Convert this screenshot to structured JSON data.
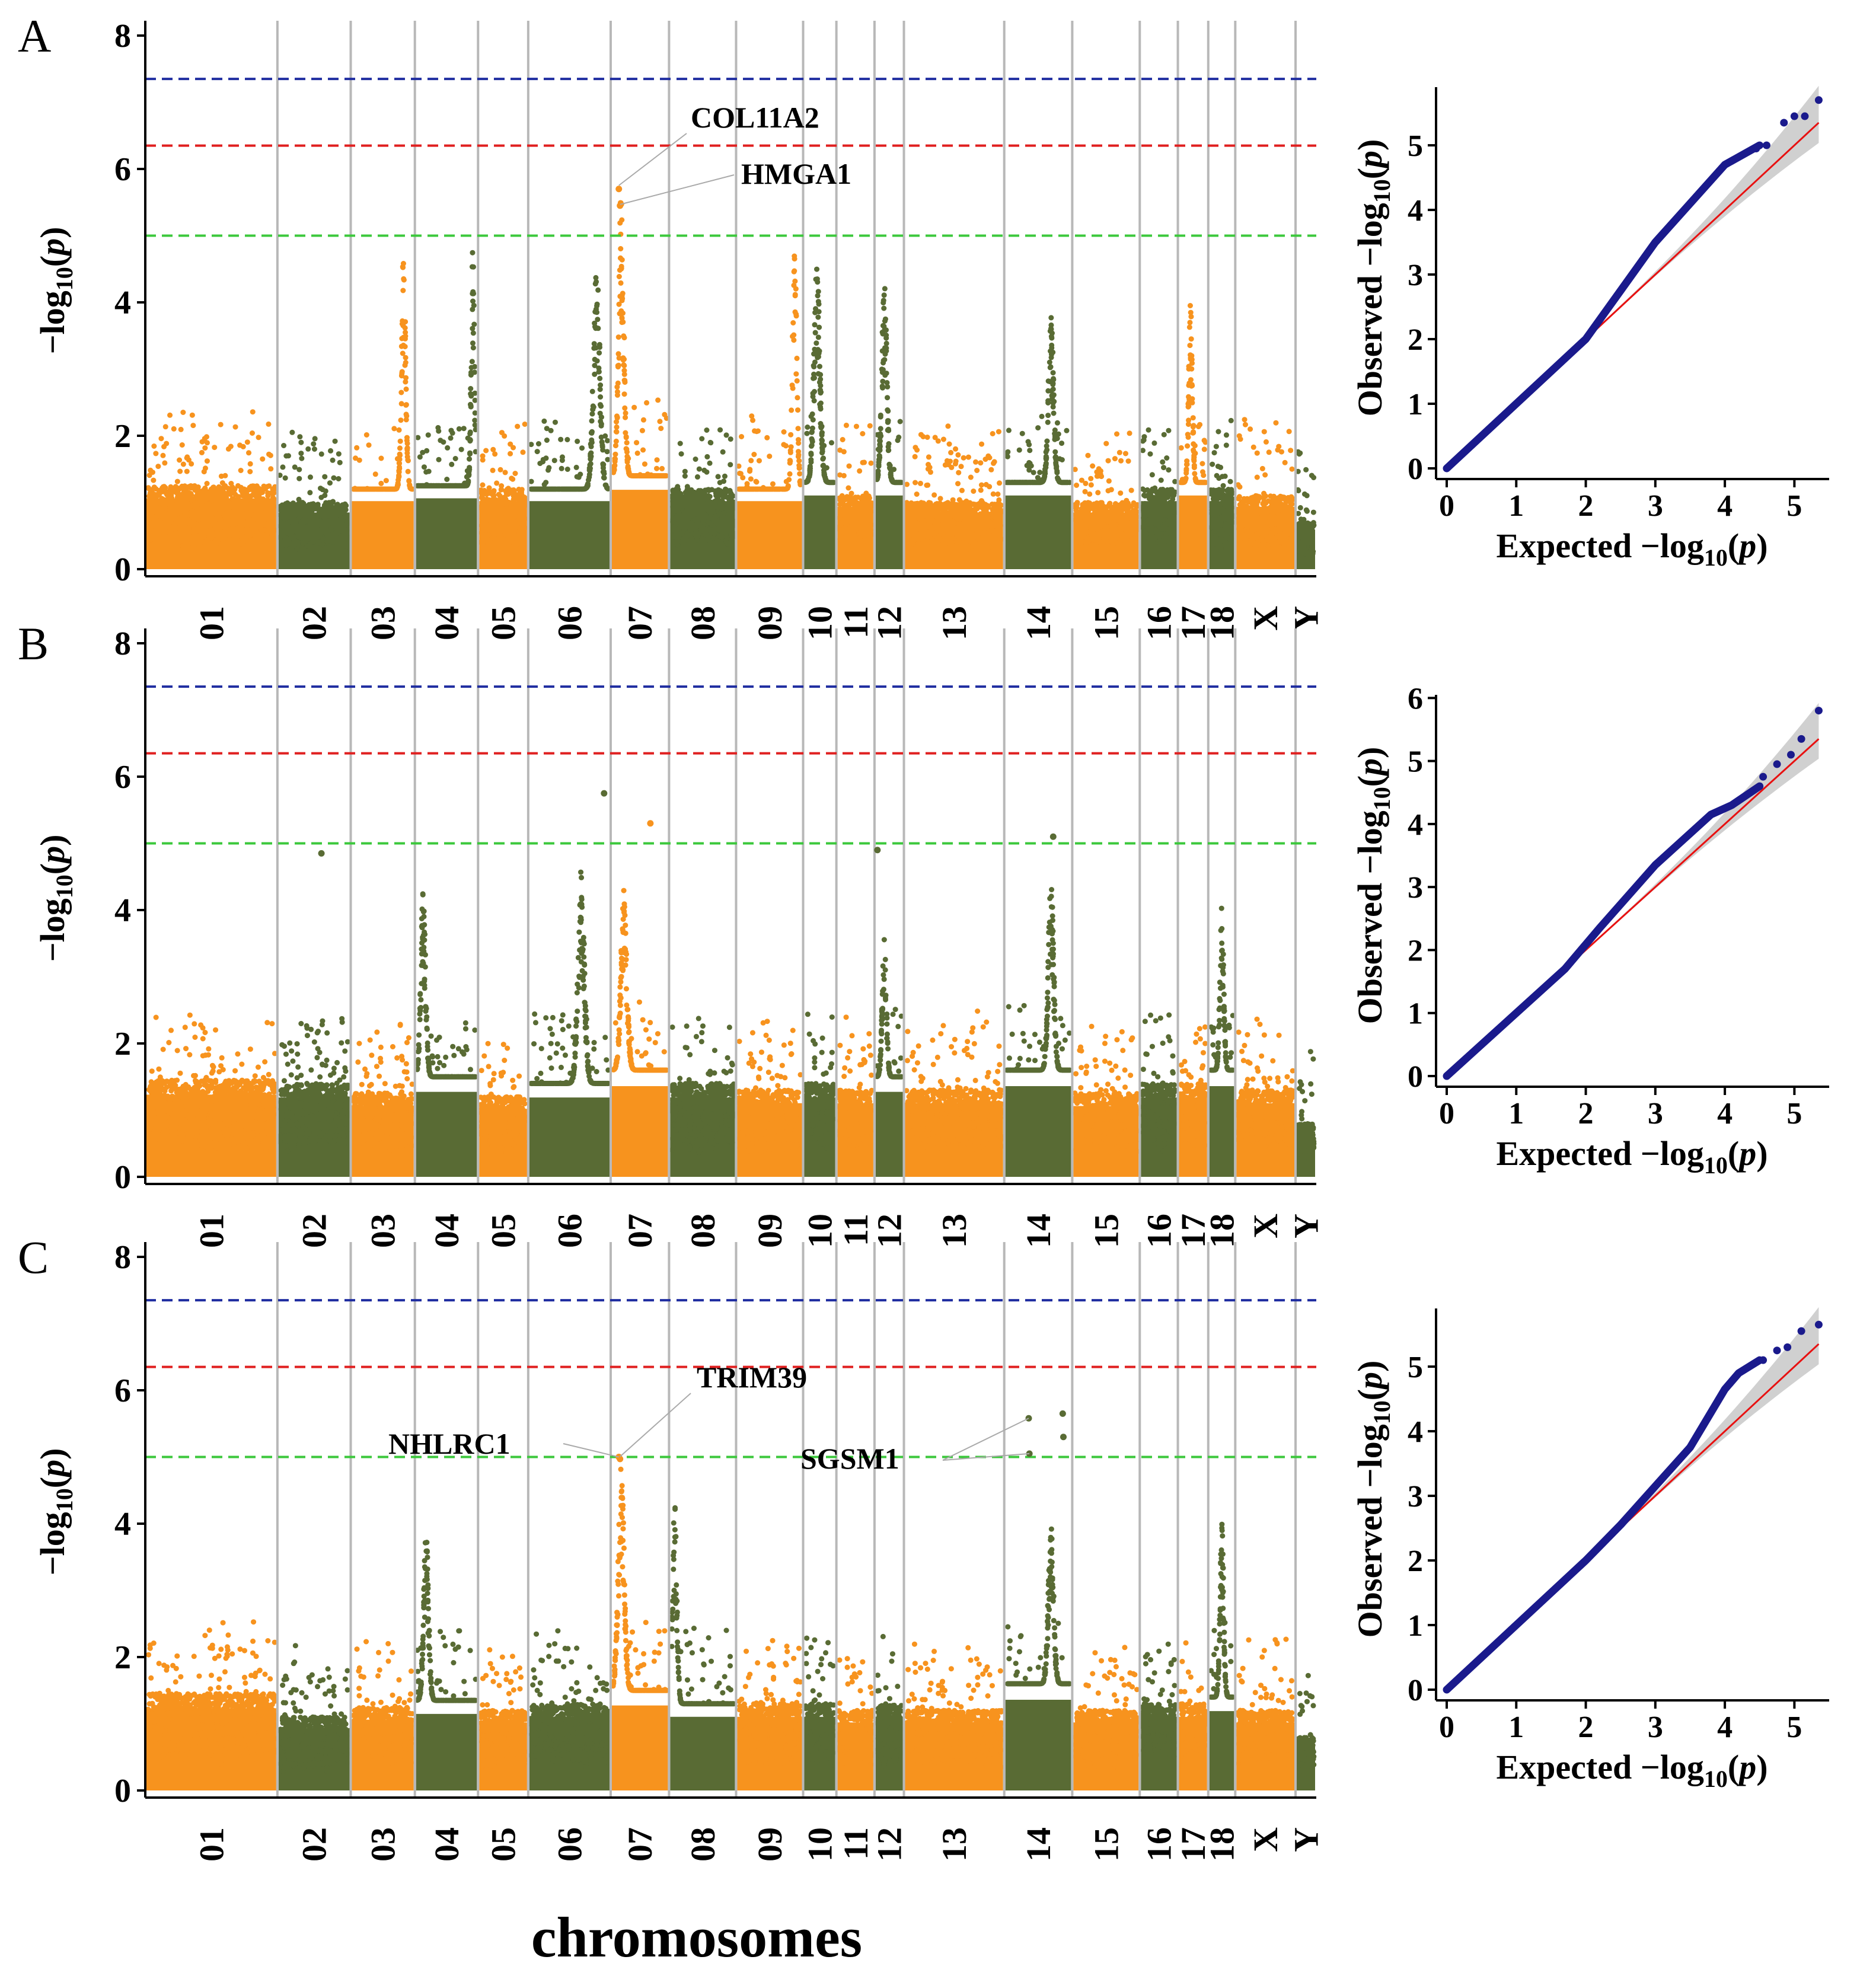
{
  "figure": {
    "x_title": "chromosomes",
    "colors": {
      "orange": "#F7931E",
      "green": "#596B34",
      "blue_line": "#1F2DA0",
      "red_line": "#E02020",
      "green_line": "#3CC83C",
      "qq_points": "#1A1A8C",
      "qq_line": "#E81010",
      "ci_band": "#C8C8C8",
      "divider": "#B8B8B8"
    }
  },
  "chart_data": [
    {
      "panel": "A",
      "type": "scatter",
      "subtype": "manhattan",
      "ylabel": "-log10(p)",
      "ylim": [
        0,
        8
      ],
      "yticks": [
        0,
        2,
        4,
        6,
        8
      ],
      "thresholds": [
        {
          "name": "blue",
          "value": 7.35
        },
        {
          "name": "red",
          "value": 6.35
        },
        {
          "name": "green",
          "value": 5.0
        }
      ],
      "chromosomes": [
        {
          "label": "01",
          "length": 274,
          "base": 1.25,
          "color": "orange"
        },
        {
          "label": "02",
          "length": 152,
          "base": 1.0,
          "color": "green"
        },
        {
          "label": "03",
          "length": 133,
          "base": 1.2,
          "color": "orange"
        },
        {
          "label": "04",
          "length": 131,
          "base": 1.25,
          "color": "green"
        },
        {
          "label": "05",
          "length": 104,
          "base": 1.2,
          "color": "orange"
        },
        {
          "label": "06",
          "length": 171,
          "base": 1.2,
          "color": "green"
        },
        {
          "label": "07",
          "length": 121,
          "base": 1.4,
          "color": "orange"
        },
        {
          "label": "08",
          "length": 139,
          "base": 1.2,
          "color": "green"
        },
        {
          "label": "09",
          "length": 139,
          "base": 1.2,
          "color": "orange"
        },
        {
          "label": "10",
          "length": 69,
          "base": 1.3,
          "color": "green"
        },
        {
          "label": "11",
          "length": 79,
          "base": 1.1,
          "color": "orange"
        },
        {
          "label": "12",
          "length": 61,
          "base": 1.3,
          "color": "green"
        },
        {
          "label": "13",
          "length": 208,
          "base": 1.0,
          "color": "orange"
        },
        {
          "label": "14",
          "length": 141,
          "base": 1.3,
          "color": "green"
        },
        {
          "label": "15",
          "length": 140,
          "base": 1.0,
          "color": "orange"
        },
        {
          "label": "16",
          "length": 79,
          "base": 1.2,
          "color": "green"
        },
        {
          "label": "17",
          "length": 63,
          "base": 1.3,
          "color": "orange"
        },
        {
          "label": "18",
          "length": 56,
          "base": 1.2,
          "color": "green"
        },
        {
          "label": "X",
          "length": 125,
          "base": 1.1,
          "color": "orange"
        },
        {
          "label": "Y",
          "length": 43,
          "base": 0.7,
          "color": "green"
        }
      ],
      "peaks": [
        {
          "chr": "07",
          "pos": 0.15,
          "height": 5.7,
          "width": 0.07
        },
        {
          "chr": "14",
          "pos": 0.7,
          "height": 3.8,
          "width": 0.06
        },
        {
          "chr": "03",
          "pos": 0.85,
          "height": 4.9,
          "width": 0.05
        },
        {
          "chr": "10",
          "pos": 0.4,
          "height": 4.6,
          "width": 0.15
        },
        {
          "chr": "12",
          "pos": 0.3,
          "height": 4.3,
          "width": 0.15
        },
        {
          "chr": "17",
          "pos": 0.4,
          "height": 4.05,
          "width": 0.1
        },
        {
          "chr": "09",
          "pos": 0.9,
          "height": 4.9,
          "width": 0.05
        },
        {
          "chr": "06",
          "pos": 0.85,
          "height": 4.5,
          "width": 0.06
        },
        {
          "chr": "04",
          "pos": 0.95,
          "height": 4.8,
          "width": 0.04
        }
      ],
      "highlight_points": [
        {
          "chr": "07",
          "pos": 0.14,
          "value": 5.7
        },
        {
          "chr": "07",
          "pos": 0.16,
          "value": 5.45
        }
      ],
      "annotations": [
        {
          "text": "COL11A2",
          "target": 0
        },
        {
          "text": "HMGA1",
          "target": 1
        }
      ],
      "qq": {
        "xlabel": "Expected −log10(p)",
        "ylabel": "Observed −log10(p)",
        "xlim": [
          0,
          5.5
        ],
        "ylim": [
          0,
          5.9
        ],
        "xticks": [
          0,
          1,
          2,
          3,
          4,
          5
        ],
        "yticks": [
          0,
          1,
          2,
          3,
          4,
          5
        ],
        "max_expected": 5.35,
        "curve": [
          [
            0,
            0
          ],
          [
            2.0,
            2.0
          ],
          [
            2.5,
            2.75
          ],
          [
            3.0,
            3.5
          ],
          [
            3.5,
            4.1
          ],
          [
            4.0,
            4.7
          ],
          [
            4.5,
            5.0
          ],
          [
            5.35,
            5.7
          ]
        ],
        "tail": [
          [
            4.45,
            4.95
          ],
          [
            4.6,
            5.0
          ],
          [
            4.85,
            5.35
          ],
          [
            5.0,
            5.45
          ],
          [
            5.15,
            5.45
          ],
          [
            5.35,
            5.7
          ]
        ]
      }
    },
    {
      "panel": "B",
      "type": "scatter",
      "subtype": "manhattan",
      "ylabel": "-log10(p)",
      "ylim": [
        0,
        8
      ],
      "yticks": [
        0,
        2,
        4,
        6,
        8
      ],
      "thresholds": [
        {
          "name": "blue",
          "value": 7.35
        },
        {
          "name": "red",
          "value": 6.35
        },
        {
          "name": "green",
          "value": 5.0
        }
      ],
      "chromosomes": [
        {
          "label": "01",
          "length": 274,
          "base": 1.45,
          "color": "orange"
        },
        {
          "label": "02",
          "length": 152,
          "base": 1.4,
          "color": "green"
        },
        {
          "label": "03",
          "length": 133,
          "base": 1.25,
          "color": "orange"
        },
        {
          "label": "04",
          "length": 131,
          "base": 1.5,
          "color": "green"
        },
        {
          "label": "05",
          "length": 104,
          "base": 1.2,
          "color": "orange"
        },
        {
          "label": "06",
          "length": 171,
          "base": 1.4,
          "color": "green"
        },
        {
          "label": "07",
          "length": 121,
          "base": 1.6,
          "color": "orange"
        },
        {
          "label": "08",
          "length": 139,
          "base": 1.4,
          "color": "green"
        },
        {
          "label": "09",
          "length": 139,
          "base": 1.3,
          "color": "orange"
        },
        {
          "label": "10",
          "length": 69,
          "base": 1.4,
          "color": "green"
        },
        {
          "label": "11",
          "length": 79,
          "base": 1.3,
          "color": "orange"
        },
        {
          "label": "12",
          "length": 61,
          "base": 1.5,
          "color": "green"
        },
        {
          "label": "13",
          "length": 208,
          "base": 1.3,
          "color": "orange"
        },
        {
          "label": "14",
          "length": 141,
          "base": 1.6,
          "color": "green"
        },
        {
          "label": "15",
          "length": 140,
          "base": 1.25,
          "color": "orange"
        },
        {
          "label": "16",
          "length": 79,
          "base": 1.4,
          "color": "green"
        },
        {
          "label": "17",
          "length": 63,
          "base": 1.4,
          "color": "orange"
        },
        {
          "label": "18",
          "length": 56,
          "base": 1.6,
          "color": "green"
        },
        {
          "label": "X",
          "length": 125,
          "base": 1.3,
          "color": "orange"
        },
        {
          "label": "Y",
          "length": 43,
          "base": 0.8,
          "color": "green"
        }
      ],
      "peaks": [
        {
          "chr": "07",
          "pos": 0.2,
          "height": 4.3,
          "width": 0.08
        },
        {
          "chr": "14",
          "pos": 0.7,
          "height": 4.5,
          "width": 0.06
        },
        {
          "chr": "04",
          "pos": 0.1,
          "height": 4.3,
          "width": 0.06
        },
        {
          "chr": "06",
          "pos": 0.65,
          "height": 4.6,
          "width": 0.06
        },
        {
          "chr": "12",
          "pos": 0.3,
          "height": 3.6,
          "width": 0.12
        },
        {
          "chr": "18",
          "pos": 0.5,
          "height": 4.2,
          "width": 0.12
        }
      ],
      "highlight_points": [
        {
          "chr": "06",
          "pos": 0.92,
          "value": 5.75
        },
        {
          "chr": "07",
          "pos": 0.68,
          "value": 5.3
        },
        {
          "chr": "14",
          "pos": 0.72,
          "value": 5.1
        },
        {
          "chr": "12",
          "pos": 0.1,
          "value": 4.9
        },
        {
          "chr": "02",
          "pos": 0.6,
          "value": 4.85
        }
      ],
      "annotations": [],
      "qq": {
        "xlabel": "Expected −log10(p)",
        "ylabel": "Observed −log10(p)",
        "xlim": [
          0,
          5.5
        ],
        "ylim": [
          0,
          6.05
        ],
        "xticks": [
          0,
          1,
          2,
          3,
          4,
          5
        ],
        "yticks": [
          0,
          1,
          2,
          3,
          4,
          5,
          6
        ],
        "max_expected": 5.35,
        "curve": [
          [
            0,
            0
          ],
          [
            1.7,
            1.7
          ],
          [
            2.2,
            2.35
          ],
          [
            3.0,
            3.35
          ],
          [
            3.6,
            3.95
          ],
          [
            3.8,
            4.15
          ],
          [
            4.1,
            4.3
          ],
          [
            4.5,
            4.6
          ],
          [
            5.35,
            5.8
          ]
        ],
        "tail": [
          [
            4.55,
            4.75
          ],
          [
            4.75,
            4.95
          ],
          [
            4.95,
            5.1
          ],
          [
            5.1,
            5.35
          ],
          [
            5.35,
            5.8
          ]
        ]
      }
    },
    {
      "panel": "C",
      "type": "scatter",
      "subtype": "manhattan",
      "ylabel": "-log10(p)",
      "ylim": [
        0,
        8
      ],
      "yticks": [
        0,
        2,
        4,
        6,
        8
      ],
      "thresholds": [
        {
          "name": "blue",
          "value": 7.35
        },
        {
          "name": "red",
          "value": 6.35
        },
        {
          "name": "green",
          "value": 5.0
        }
      ],
      "chromosomes": [
        {
          "label": "01",
          "length": 274,
          "base": 1.45,
          "color": "orange"
        },
        {
          "label": "02",
          "length": 152,
          "base": 1.1,
          "color": "green"
        },
        {
          "label": "03",
          "length": 133,
          "base": 1.25,
          "color": "orange"
        },
        {
          "label": "04",
          "length": 131,
          "base": 1.35,
          "color": "green"
        },
        {
          "label": "05",
          "length": 104,
          "base": 1.2,
          "color": "orange"
        },
        {
          "label": "06",
          "length": 171,
          "base": 1.3,
          "color": "green"
        },
        {
          "label": "07",
          "length": 121,
          "base": 1.5,
          "color": "orange"
        },
        {
          "label": "08",
          "length": 139,
          "base": 1.3,
          "color": "green"
        },
        {
          "label": "09",
          "length": 139,
          "base": 1.3,
          "color": "orange"
        },
        {
          "label": "10",
          "length": 69,
          "base": 1.3,
          "color": "green"
        },
        {
          "label": "11",
          "length": 79,
          "base": 1.2,
          "color": "orange"
        },
        {
          "label": "12",
          "length": 61,
          "base": 1.3,
          "color": "green"
        },
        {
          "label": "13",
          "length": 208,
          "base": 1.2,
          "color": "orange"
        },
        {
          "label": "14",
          "length": 141,
          "base": 1.6,
          "color": "green"
        },
        {
          "label": "15",
          "length": 140,
          "base": 1.2,
          "color": "orange"
        },
        {
          "label": "16",
          "length": 79,
          "base": 1.3,
          "color": "green"
        },
        {
          "label": "17",
          "length": 63,
          "base": 1.3,
          "color": "orange"
        },
        {
          "label": "18",
          "length": 56,
          "base": 1.4,
          "color": "green"
        },
        {
          "label": "X",
          "length": 125,
          "base": 1.2,
          "color": "orange"
        },
        {
          "label": "Y",
          "length": 43,
          "base": 0.8,
          "color": "green"
        }
      ],
      "peaks": [
        {
          "chr": "07",
          "pos": 0.15,
          "height": 4.9,
          "width": 0.08
        },
        {
          "chr": "14",
          "pos": 0.7,
          "height": 4.0,
          "width": 0.06
        },
        {
          "chr": "04",
          "pos": 0.15,
          "height": 3.9,
          "width": 0.06
        },
        {
          "chr": "18",
          "pos": 0.5,
          "height": 4.0,
          "width": 0.12
        },
        {
          "chr": "08",
          "pos": 0.05,
          "height": 4.35,
          "width": 0.05
        }
      ],
      "highlight_points": [
        {
          "chr": "07",
          "pos": 0.14,
          "value": 5.0
        },
        {
          "chr": "07",
          "pos": 0.16,
          "value": 4.97
        },
        {
          "chr": "14",
          "pos": 0.36,
          "value": 5.58
        },
        {
          "chr": "14",
          "pos": 0.37,
          "value": 5.05
        },
        {
          "chr": "14",
          "pos": 0.86,
          "value": 5.65
        },
        {
          "chr": "14",
          "pos": 0.87,
          "value": 5.3
        }
      ],
      "annotations": [
        {
          "text": "TRIM39",
          "target": 1
        },
        {
          "text": "NHLRC1",
          "target": 0
        },
        {
          "text": "SGSM1",
          "target": 2
        },
        {
          "text": "SGSM1",
          "target": 3
        }
      ],
      "qq": {
        "xlabel": "Expected −log10(p)",
        "ylabel": "Observed −log10(p)",
        "xlim": [
          0,
          5.5
        ],
        "ylim": [
          0,
          5.9
        ],
        "xticks": [
          0,
          1,
          2,
          3,
          4,
          5
        ],
        "yticks": [
          0,
          1,
          2,
          3,
          4,
          5
        ],
        "max_expected": 5.35,
        "curve": [
          [
            0,
            0
          ],
          [
            2.0,
            2.0
          ],
          [
            2.5,
            2.55
          ],
          [
            3.0,
            3.15
          ],
          [
            3.5,
            3.75
          ],
          [
            4.0,
            4.65
          ],
          [
            4.2,
            4.9
          ],
          [
            4.5,
            5.1
          ],
          [
            5.35,
            5.65
          ]
        ],
        "tail": [
          [
            4.55,
            5.1
          ],
          [
            4.75,
            5.25
          ],
          [
            4.9,
            5.3
          ],
          [
            5.1,
            5.55
          ],
          [
            5.35,
            5.65
          ]
        ]
      }
    }
  ]
}
